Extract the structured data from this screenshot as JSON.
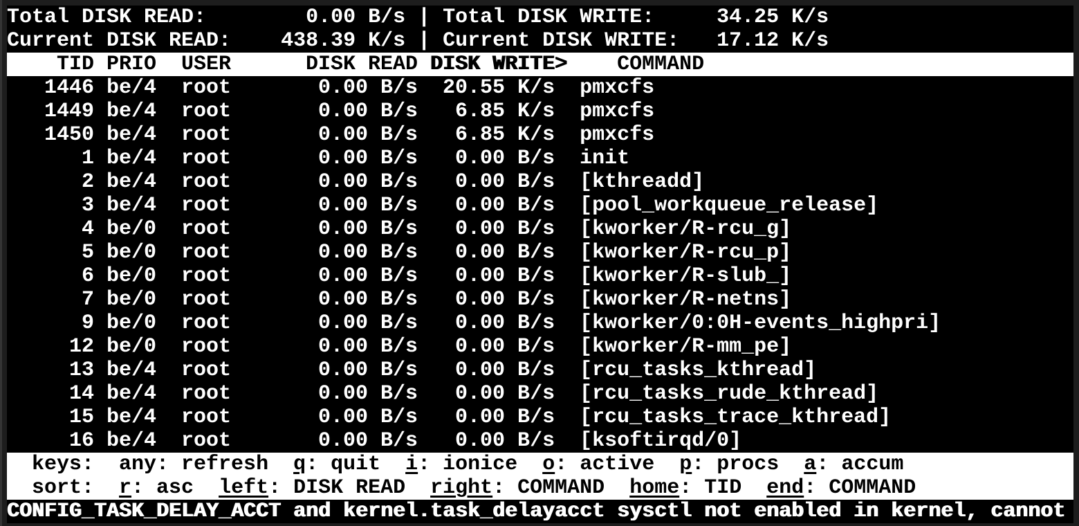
{
  "app": "iotop",
  "colors": {
    "background": "#000000",
    "foreground": "#ffffff",
    "window_border": "#1d1d1d",
    "inverted_bg": "#ffffff",
    "inverted_fg": "#000000"
  },
  "summary": {
    "separator": "|",
    "total_read_label": "Total DISK READ:",
    "total_read_value": "0.00 B/s",
    "total_write_label": "Total DISK WRITE:",
    "total_write_value": "34.25 K/s",
    "current_read_label": "Current DISK READ:",
    "current_read_value": "438.39 K/s",
    "current_write_label": "Current DISK WRITE:",
    "current_write_value": "17.12 K/s"
  },
  "table": {
    "columns": {
      "tid": "TID",
      "prio": "PRIO",
      "user": "USER",
      "disk_read": "DISK READ",
      "disk_write": "DISK WRITE",
      "sort_indicator": ">",
      "command": "COMMAND"
    },
    "rows": [
      {
        "tid": "1446",
        "prio": "be/4",
        "user": "root",
        "disk_read": "0.00 B/s",
        "disk_write": "20.55 K/s",
        "command": "pmxcfs"
      },
      {
        "tid": "1449",
        "prio": "be/4",
        "user": "root",
        "disk_read": "0.00 B/s",
        "disk_write": "6.85 K/s",
        "command": "pmxcfs"
      },
      {
        "tid": "1450",
        "prio": "be/4",
        "user": "root",
        "disk_read": "0.00 B/s",
        "disk_write": "6.85 K/s",
        "command": "pmxcfs"
      },
      {
        "tid": "1",
        "prio": "be/4",
        "user": "root",
        "disk_read": "0.00 B/s",
        "disk_write": "0.00 B/s",
        "command": "init"
      },
      {
        "tid": "2",
        "prio": "be/4",
        "user": "root",
        "disk_read": "0.00 B/s",
        "disk_write": "0.00 B/s",
        "command": "[kthreadd]"
      },
      {
        "tid": "3",
        "prio": "be/4",
        "user": "root",
        "disk_read": "0.00 B/s",
        "disk_write": "0.00 B/s",
        "command": "[pool_workqueue_release]"
      },
      {
        "tid": "4",
        "prio": "be/0",
        "user": "root",
        "disk_read": "0.00 B/s",
        "disk_write": "0.00 B/s",
        "command": "[kworker/R-rcu_g]"
      },
      {
        "tid": "5",
        "prio": "be/0",
        "user": "root",
        "disk_read": "0.00 B/s",
        "disk_write": "0.00 B/s",
        "command": "[kworker/R-rcu_p]"
      },
      {
        "tid": "6",
        "prio": "be/0",
        "user": "root",
        "disk_read": "0.00 B/s",
        "disk_write": "0.00 B/s",
        "command": "[kworker/R-slub_]"
      },
      {
        "tid": "7",
        "prio": "be/0",
        "user": "root",
        "disk_read": "0.00 B/s",
        "disk_write": "0.00 B/s",
        "command": "[kworker/R-netns]"
      },
      {
        "tid": "9",
        "prio": "be/0",
        "user": "root",
        "disk_read": "0.00 B/s",
        "disk_write": "0.00 B/s",
        "command": "[kworker/0:0H-events_highpri]"
      },
      {
        "tid": "12",
        "prio": "be/0",
        "user": "root",
        "disk_read": "0.00 B/s",
        "disk_write": "0.00 B/s",
        "command": "[kworker/R-mm_pe]"
      },
      {
        "tid": "13",
        "prio": "be/4",
        "user": "root",
        "disk_read": "0.00 B/s",
        "disk_write": "0.00 B/s",
        "command": "[rcu_tasks_kthread]"
      },
      {
        "tid": "14",
        "prio": "be/4",
        "user": "root",
        "disk_read": "0.00 B/s",
        "disk_write": "0.00 B/s",
        "command": "[rcu_tasks_rude_kthread]"
      },
      {
        "tid": "15",
        "prio": "be/4",
        "user": "root",
        "disk_read": "0.00 B/s",
        "disk_write": "0.00 B/s",
        "command": "[rcu_tasks_trace_kthread]"
      },
      {
        "tid": "16",
        "prio": "be/4",
        "user": "root",
        "disk_read": "0.00 B/s",
        "disk_write": "0.00 B/s",
        "command": "[ksoftirqd/0]"
      }
    ]
  },
  "help": {
    "sep": ": ",
    "keys_label": "keys:",
    "keys": [
      {
        "key": "any",
        "desc": "refresh"
      },
      {
        "key": "q",
        "desc": "quit"
      },
      {
        "key": "i",
        "desc": "ionice"
      },
      {
        "key": "o",
        "desc": "active"
      },
      {
        "key": "p",
        "desc": "procs"
      },
      {
        "key": "a",
        "desc": "accum"
      }
    ],
    "sort_label": "sort:",
    "sort": [
      {
        "key": "r",
        "desc": "asc"
      },
      {
        "key": "left",
        "desc": "DISK READ"
      },
      {
        "key": "right",
        "desc": "COMMAND"
      },
      {
        "key": "home",
        "desc": "TID"
      },
      {
        "key": "end",
        "desc": "COMMAND"
      }
    ]
  },
  "status": {
    "message": "CONFIG_TASK_DELAY_ACCT and kernel.task_delayacct sysctl not enabled in kernel, cannot"
  }
}
